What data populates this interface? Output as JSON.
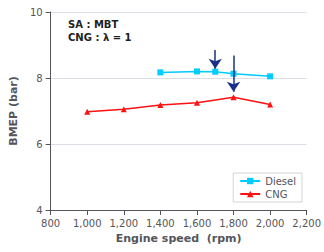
{
  "chart_data": {
    "type": "line",
    "xlabel": "Engine speed  (rpm)",
    "ylabel": "BMEP (bar)",
    "annotation": "SA : MBT\nCNG : λ = 1",
    "series": [
      {
        "name": "Diesel",
        "color": "#00CCFF",
        "marker": "square",
        "x": [
          1400,
          1600,
          1700,
          1800,
          2000
        ],
        "values": [
          8.17,
          8.2,
          8.19,
          8.13,
          8.05
        ]
      },
      {
        "name": "CNG",
        "color": "#FF1111",
        "marker": "triangle",
        "x": [
          1000,
          1200,
          1400,
          1600,
          1800,
          2000
        ],
        "values": [
          6.98,
          7.05,
          7.18,
          7.25,
          7.42,
          7.2
        ]
      }
    ],
    "arrows": [
      {
        "x": 1700,
        "y_start": 8.85,
        "y_end": 8.28,
        "color": "#1a3088"
      },
      {
        "x": 1800,
        "y_start": 8.68,
        "y_end": 7.58,
        "color": "#1a3088"
      }
    ],
    "xlim": [
      800,
      2200
    ],
    "xticks": [
      800,
      1000,
      1200,
      1400,
      1600,
      1800,
      2000,
      2200
    ],
    "ylim": [
      4,
      10
    ],
    "yticks": [
      4,
      6,
      8,
      10
    ],
    "grid": "y",
    "legend": "lower right"
  }
}
